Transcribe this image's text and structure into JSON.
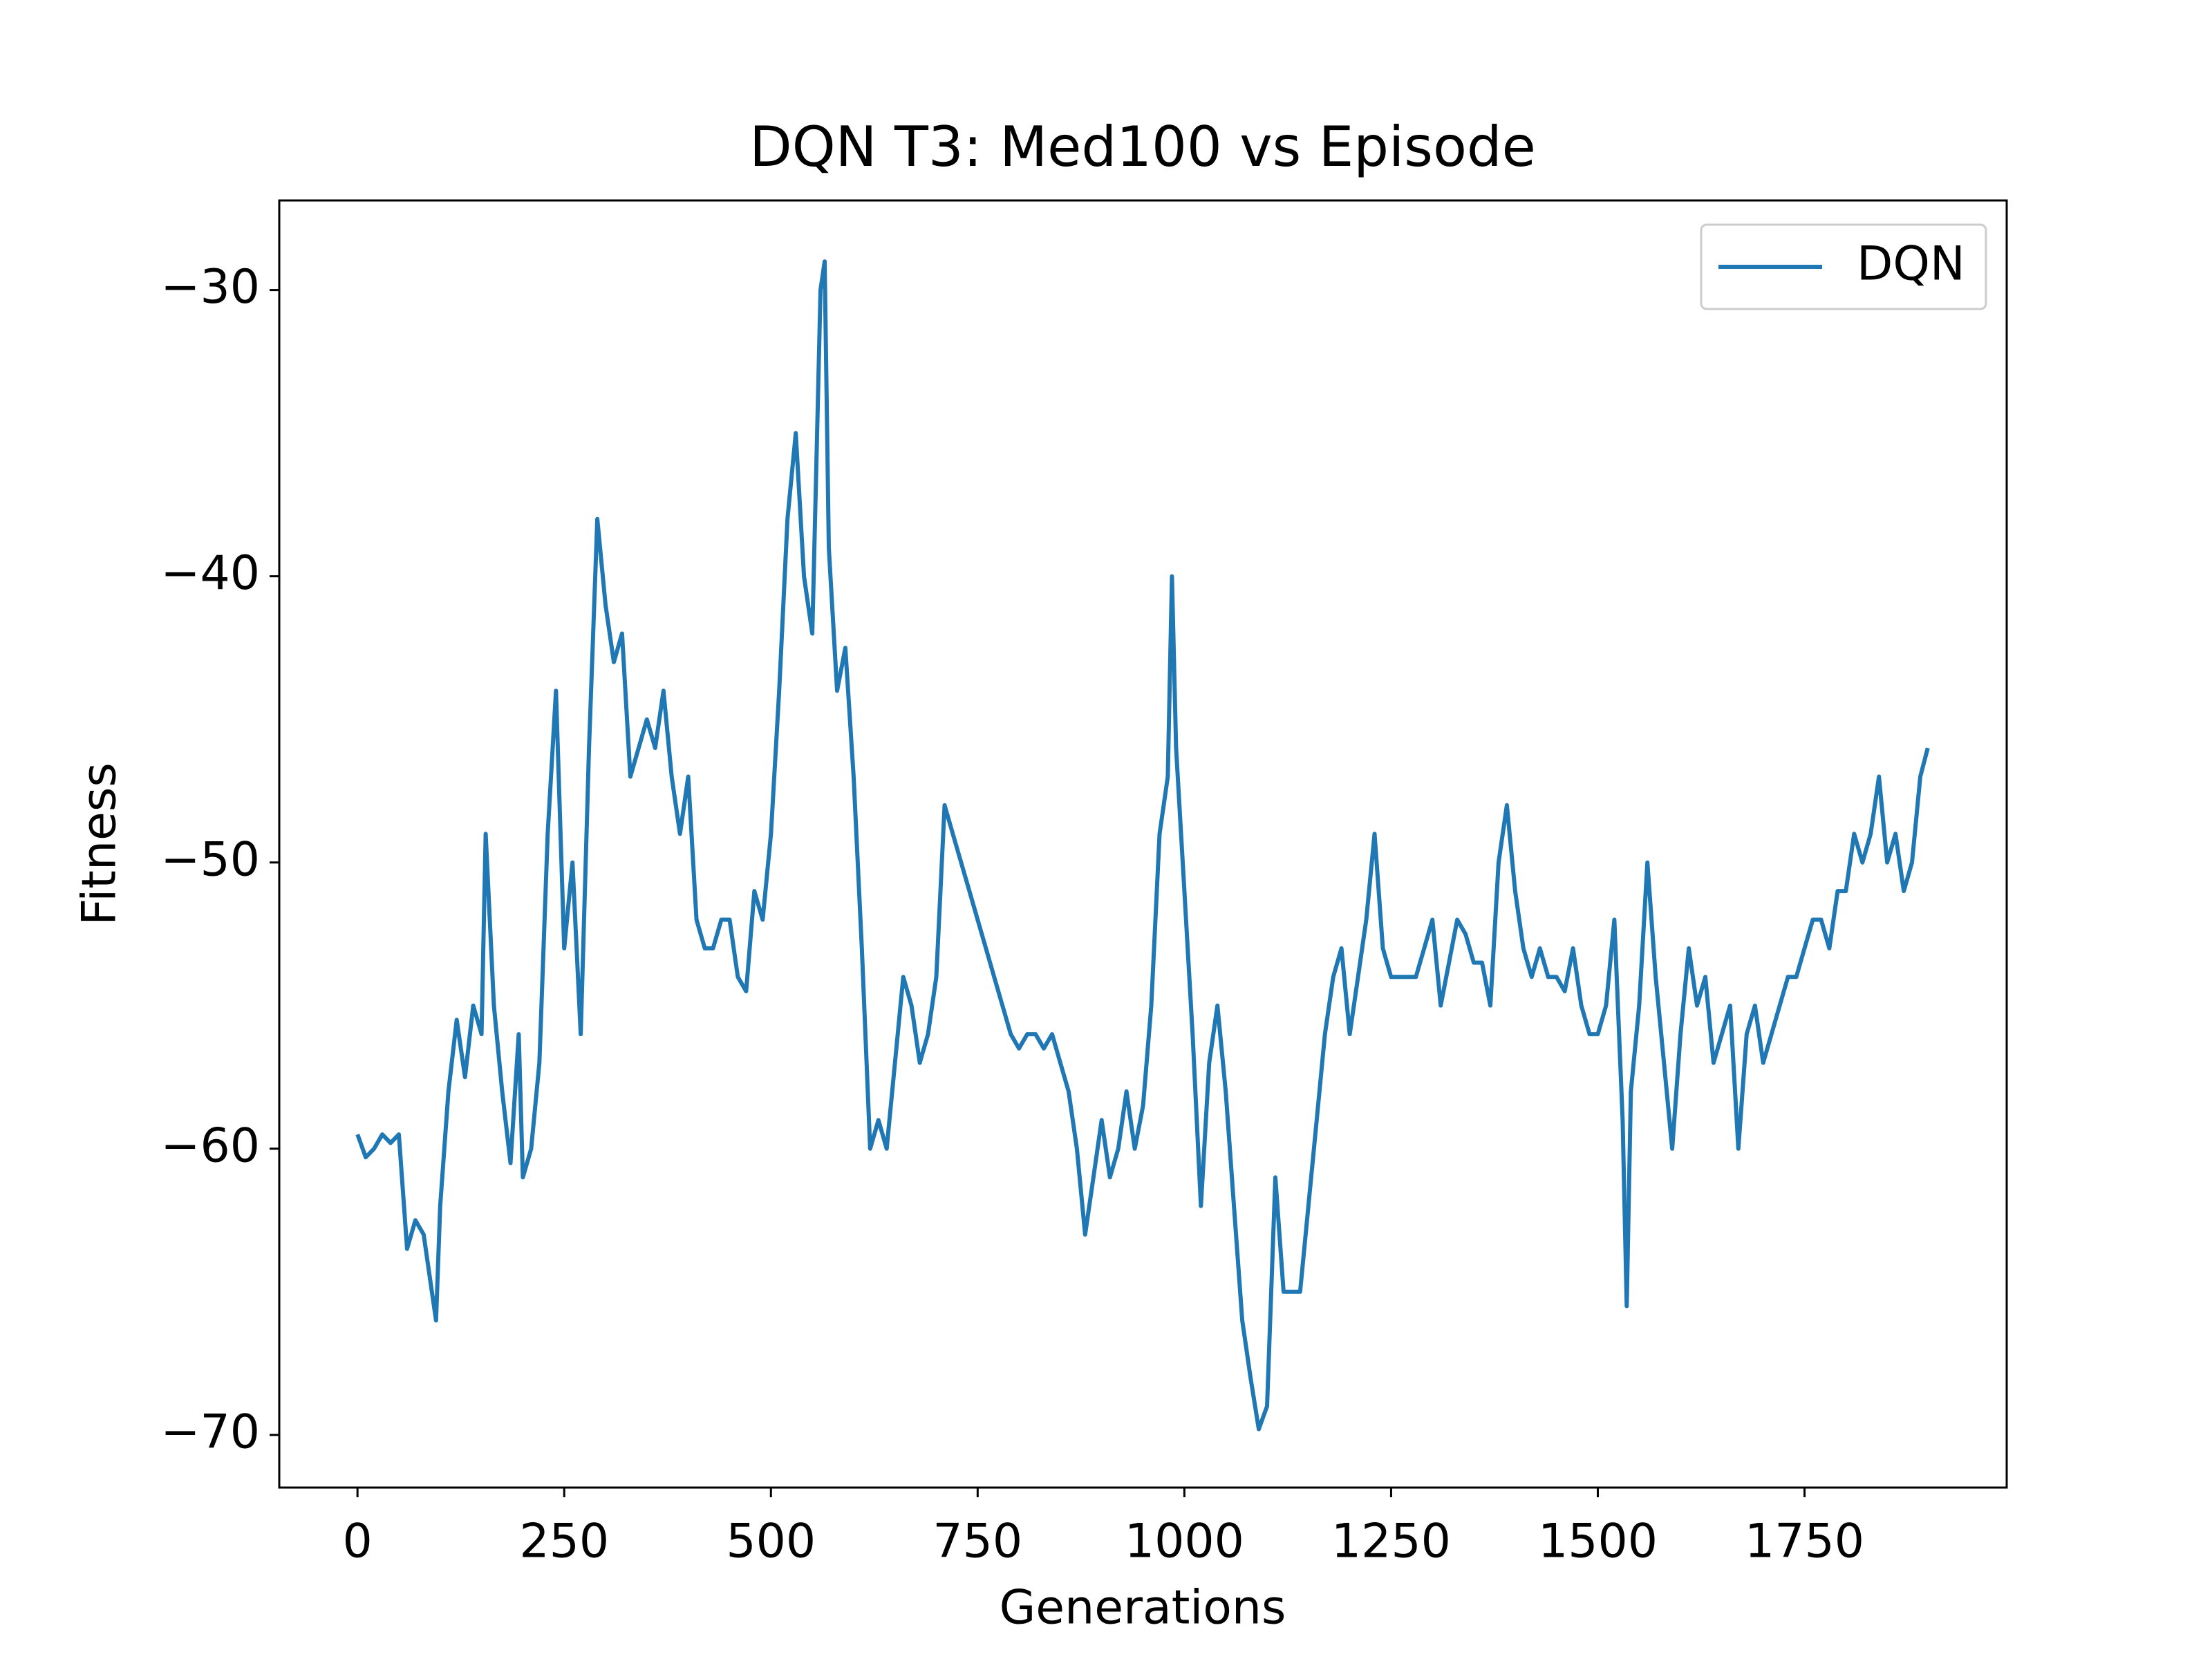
{
  "chart_data": {
    "type": "line",
    "title": "DQN T3: Med100 vs Episode",
    "x_label": "Generations",
    "y_label": "Fitness",
    "legend": "upper right",
    "grid": false,
    "xlim": [
      -94.6,
      1994.5
    ],
    "ylim": [
      -71.84,
      -26.87
    ],
    "xticks": [
      0,
      250,
      500,
      750,
      1000,
      1250,
      1500,
      1750
    ],
    "yticks": [
      {
        "value": -70,
        "label": "−70"
      },
      {
        "value": -60,
        "label": "−60"
      },
      {
        "value": -50,
        "label": "−50"
      },
      {
        "value": -40,
        "label": "−40"
      },
      {
        "value": -30,
        "label": "−30"
      }
    ],
    "x": [
      0,
      10,
      20,
      30,
      40,
      50,
      60,
      70,
      80,
      90,
      95,
      100,
      110,
      120,
      130,
      140,
      150,
      155,
      165,
      175,
      185,
      195,
      200,
      210,
      220,
      230,
      240,
      250,
      260,
      270,
      280,
      290,
      300,
      310,
      320,
      330,
      340,
      350,
      360,
      370,
      380,
      390,
      400,
      410,
      420,
      430,
      440,
      450,
      460,
      470,
      480,
      490,
      500,
      510,
      520,
      530,
      540,
      550,
      555,
      560,
      565,
      570,
      580,
      590,
      600,
      610,
      620,
      630,
      640,
      650,
      660,
      670,
      680,
      690,
      700,
      710,
      720,
      730,
      740,
      750,
      760,
      770,
      780,
      790,
      800,
      810,
      820,
      830,
      840,
      850,
      860,
      870,
      880,
      890,
      900,
      910,
      920,
      930,
      940,
      950,
      960,
      970,
      980,
      985,
      990,
      1000,
      1010,
      1020,
      1030,
      1040,
      1050,
      1060,
      1070,
      1080,
      1090,
      1100,
      1110,
      1120,
      1130,
      1140,
      1150,
      1160,
      1170,
      1180,
      1190,
      1200,
      1210,
      1220,
      1230,
      1240,
      1250,
      1260,
      1270,
      1280,
      1290,
      1300,
      1310,
      1320,
      1330,
      1340,
      1350,
      1360,
      1370,
      1380,
      1390,
      1400,
      1410,
      1420,
      1430,
      1440,
      1450,
      1460,
      1470,
      1480,
      1490,
      1500,
      1510,
      1520,
      1530,
      1535,
      1540,
      1550,
      1560,
      1570,
      1580,
      1590,
      1600,
      1610,
      1620,
      1630,
      1640,
      1650,
      1660,
      1670,
      1680,
      1690,
      1700,
      1710,
      1720,
      1730,
      1740,
      1750,
      1760,
      1770,
      1780,
      1790,
      1800,
      1810,
      1820,
      1830,
      1840,
      1850,
      1860,
      1870,
      1880,
      1890,
      1899
    ],
    "series": [
      {
        "name": "DQN",
        "color": "#1f77b4",
        "values": [
          -59.5,
          -60.3,
          -60,
          -59.5,
          -59.8,
          -59.5,
          -63.5,
          -62.5,
          -63,
          -65,
          -66,
          -62,
          -58,
          -55.5,
          -57.5,
          -55,
          -56,
          -49,
          -55,
          -58,
          -60.5,
          -56,
          -61,
          -60,
          -57,
          -49,
          -44,
          -53,
          -50,
          -56,
          -46,
          -38,
          -41,
          -43,
          -42,
          -47,
          -46,
          -45,
          -46,
          -44,
          -47,
          -49,
          -47,
          -52,
          -53,
          -53,
          -52,
          -52,
          -54,
          -54.5,
          -51,
          -52,
          -49,
          -44,
          -38,
          -35,
          -40,
          -42,
          -36,
          -30,
          -29,
          -39,
          -44,
          -42.5,
          -47,
          -53,
          -60,
          -59,
          -60,
          -57,
          -54,
          -55,
          -57,
          -56,
          -54,
          -48,
          -49,
          -50,
          -51,
          -52,
          -53,
          -54,
          -55,
          -56,
          -56.5,
          -56,
          -56,
          -56.5,
          -56,
          -57,
          -58,
          -60,
          -63,
          -61,
          -59,
          -61,
          -60,
          -58,
          -60,
          -58.5,
          -55,
          -49,
          -47,
          -40,
          -46,
          -51,
          -56,
          -62,
          -57,
          -55,
          -58,
          -62,
          -66,
          -68,
          -69.8,
          -69,
          -61,
          -65,
          -65,
          -65,
          -62,
          -59,
          -56,
          -54,
          -53,
          -56,
          -54,
          -52,
          -49,
          -53,
          -54,
          -54,
          -54,
          -54,
          -53,
          -52,
          -55,
          -53.5,
          -52,
          -52.5,
          -53.5,
          -53.5,
          -55,
          -50,
          -48,
          -51,
          -53,
          -54,
          -53,
          -54,
          -54,
          -54.5,
          -53,
          -55,
          -56,
          -56,
          -55,
          -52,
          -59,
          -65.5,
          -58,
          -55,
          -50,
          -54,
          -57,
          -60,
          -56,
          -53,
          -55,
          -54,
          -57,
          -56,
          -55,
          -60,
          -56,
          -55,
          -57,
          -56,
          -55,
          -54,
          -54,
          -53,
          -52,
          -52,
          -53,
          -51,
          -51,
          -49,
          -50,
          -49,
          -47,
          -50,
          -49,
          -51,
          -50,
          -47,
          -46
        ]
      }
    ]
  }
}
